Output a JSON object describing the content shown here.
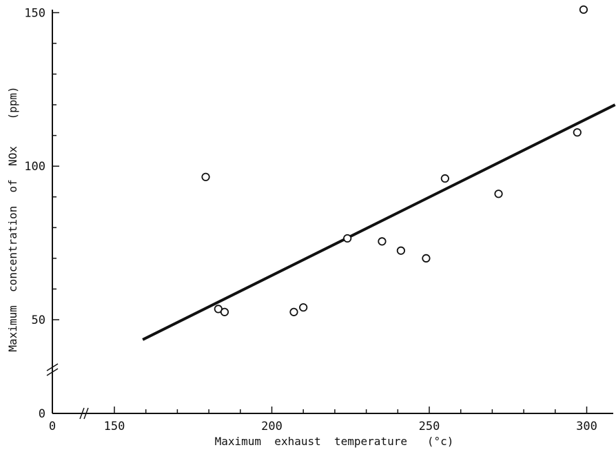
{
  "chart_data": {
    "type": "scatter",
    "title": "",
    "xlabel": "Maximum  exhaust  temperature   (°c)",
    "ylabel": "Maximum  concentration  of  NOx    (ppm)",
    "xlim": [
      150,
      310
    ],
    "ylim": [
      0,
      150
    ],
    "axis_breaks": {
      "x": true,
      "y": true
    },
    "x_ticks": [
      "0",
      "150",
      "200",
      "250",
      "300"
    ],
    "y_ticks": [
      "0",
      "50",
      "100",
      "150"
    ],
    "grid": false,
    "points": [
      {
        "x": 179,
        "y": 96.5
      },
      {
        "x": 183,
        "y": 53.5
      },
      {
        "x": 185,
        "y": 52.5
      },
      {
        "x": 207,
        "y": 52.5
      },
      {
        "x": 210,
        "y": 54
      },
      {
        "x": 224,
        "y": 76.5
      },
      {
        "x": 235,
        "y": 75.5
      },
      {
        "x": 241,
        "y": 72.5
      },
      {
        "x": 249,
        "y": 70
      },
      {
        "x": 255,
        "y": 96
      },
      {
        "x": 272,
        "y": 91
      },
      {
        "x": 297,
        "y": 111
      },
      {
        "x": 299,
        "y": 151
      }
    ],
    "fit_line": {
      "x": [
        159,
        309
      ],
      "y": [
        43.5,
        120
      ]
    },
    "colors": {
      "ink": "#111111",
      "background": "#ffffff"
    }
  }
}
